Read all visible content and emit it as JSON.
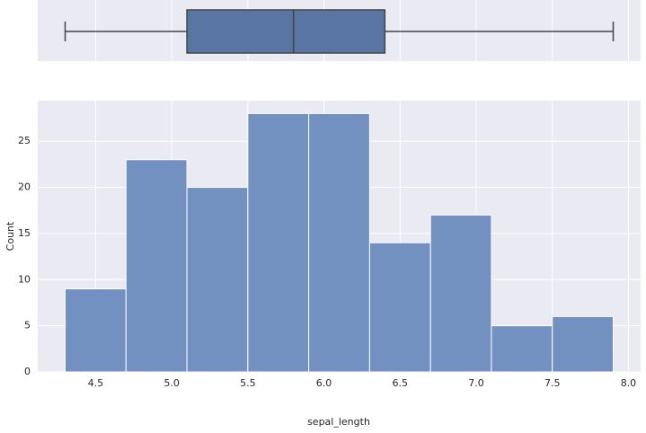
{
  "chart_data": [
    {
      "type": "box",
      "min": 4.3,
      "q1": 5.1,
      "median": 5.8,
      "q3": 6.4,
      "max": 7.9,
      "color": "#5875a4",
      "xlim": [
        4.12,
        8.08
      ],
      "xticks": [
        4.5,
        5,
        5.5,
        6,
        6.5,
        7,
        7.5,
        8
      ],
      "grid": true
    },
    {
      "type": "histogram",
      "xlabel": "sepal_length",
      "ylabel": "Count",
      "bins": [
        4.3,
        4.7,
        5.1,
        5.5,
        5.9,
        6.3,
        6.7,
        7.1,
        7.5,
        7.9
      ],
      "counts": [
        9,
        23,
        20,
        28,
        28,
        14,
        17,
        5,
        6
      ],
      "color": "#7391c0",
      "xlim": [
        4.12,
        8.08
      ],
      "ylim": [
        0,
        29.4
      ],
      "xticks": [
        4.5,
        {
          "value": 5,
          "label": "5.0"
        },
        5.5,
        {
          "value": 6,
          "label": "6.0"
        },
        6.5,
        {
          "value": 7,
          "label": "7.0"
        },
        7.5,
        {
          "value": 8,
          "label": "8.0"
        }
      ],
      "yticks": [
        0,
        5,
        10,
        15,
        20,
        25
      ],
      "grid": true
    }
  ]
}
